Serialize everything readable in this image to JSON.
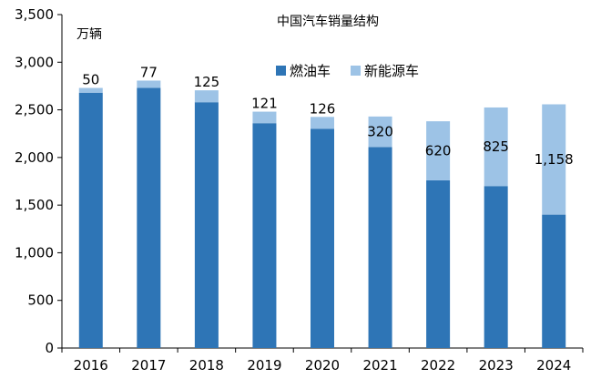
{
  "chart_data": {
    "type": "bar",
    "stacked": true,
    "title": "中国汽车销量结构",
    "unit_label": "万辆",
    "xlabel": "",
    "ylabel": "",
    "categories": [
      "2016",
      "2017",
      "2018",
      "2019",
      "2020",
      "2021",
      "2022",
      "2023",
      "2024"
    ],
    "ylim": [
      0,
      3500
    ],
    "yticks": [
      0,
      500,
      1000,
      1500,
      2000,
      2500,
      3000,
      3500
    ],
    "ytick_labels": [
      "0",
      "500",
      "1,000",
      "1,500",
      "2,000",
      "2,500",
      "3,000",
      "3,500"
    ],
    "grid": false,
    "legend_position": "top-right",
    "series": [
      {
        "name": "燃油车",
        "color": "#2E75B6",
        "values": [
          2680,
          2730,
          2580,
          2360,
          2300,
          2110,
          1760,
          1700,
          1400
        ]
      },
      {
        "name": "新能源车",
        "color": "#9DC3E6",
        "values": [
          50,
          77,
          125,
          121,
          126,
          320,
          620,
          825,
          1158
        ],
        "data_labels": [
          "50",
          "77",
          "125",
          "121",
          "126",
          "320",
          "620",
          "825",
          "1,158"
        ]
      }
    ]
  }
}
